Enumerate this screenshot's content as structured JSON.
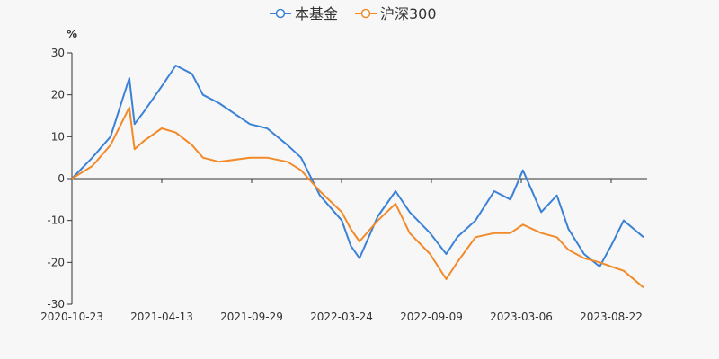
{
  "chart_data": {
    "type": "line",
    "title": "",
    "unit": "%",
    "xlabel": "",
    "ylabel": "%",
    "ylim": [
      -30,
      30
    ],
    "yticks": [
      30,
      20,
      10,
      0,
      -10,
      -20,
      -30
    ],
    "x_tick_labels": [
      "2020-10-23",
      "2021-04-13",
      "2021-09-29",
      "2022-03-24",
      "2022-09-09",
      "2023-03-06",
      "2023-08-22"
    ],
    "x": [
      "2020-10-23",
      "2020-12-01",
      "2021-01-05",
      "2021-02-10",
      "2021-02-20",
      "2021-03-10",
      "2021-04-13",
      "2021-05-10",
      "2021-06-10",
      "2021-07-01",
      "2021-08-01",
      "2021-09-29",
      "2021-11-01",
      "2021-12-10",
      "2022-01-05",
      "2022-02-10",
      "2022-03-24",
      "2022-04-10",
      "2022-04-27",
      "2022-06-01",
      "2022-07-05",
      "2022-08-01",
      "2022-09-09",
      "2022-10-10",
      "2022-10-31",
      "2022-12-05",
      "2023-01-10",
      "2023-02-10",
      "2023-03-06",
      "2023-04-10",
      "2023-05-10",
      "2023-06-01",
      "2023-07-01",
      "2023-07-31",
      "2023-08-22",
      "2023-09-15",
      "2023-10-23"
    ],
    "series": [
      {
        "name": "本基金",
        "color": "#3b82d6",
        "values": [
          0,
          5,
          10,
          24,
          13,
          16,
          22,
          27,
          25,
          20,
          18,
          13,
          12,
          8,
          5,
          -4,
          -10,
          -16,
          -19,
          -9,
          -3,
          -8,
          -13,
          -18,
          -14,
          -10,
          -3,
          -5,
          2,
          -8,
          -4,
          -12,
          -18,
          -21,
          -16,
          -10,
          -14
        ]
      },
      {
        "name": "沪深300",
        "color": "#f28a2a",
        "values": [
          0,
          3,
          8,
          17,
          7,
          9,
          12,
          11,
          8,
          5,
          4,
          5,
          5,
          4,
          2,
          -3,
          -8,
          -12,
          -15,
          -10,
          -6,
          -13,
          -18,
          -24,
          -20,
          -14,
          -13,
          -13,
          -11,
          -13,
          -14,
          -17,
          -19,
          -20,
          -21,
          -22,
          -26
        ]
      }
    ],
    "legend_position": "top-center",
    "grid": false
  }
}
